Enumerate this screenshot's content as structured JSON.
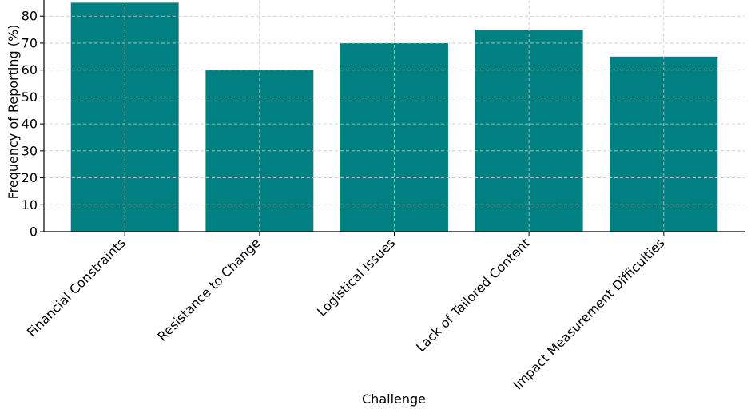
{
  "chart_data": {
    "type": "bar",
    "title": "",
    "xlabel": "Challenge",
    "ylabel": "Frequency of Reporting (%)",
    "categories": [
      "Financial Constraints",
      "Resistance to Change",
      "Logistical Issues",
      "Lack of Tailored Content",
      "Impact Measurement Difficulties"
    ],
    "values": [
      85,
      60,
      70,
      75,
      65
    ],
    "ylim": [
      0,
      86
    ],
    "yticks": [
      0,
      10,
      20,
      30,
      40,
      50,
      60,
      70,
      80
    ],
    "grid": true,
    "legend": "none",
    "bar_color": "#008080",
    "grid_color": "#c8c8c8"
  }
}
